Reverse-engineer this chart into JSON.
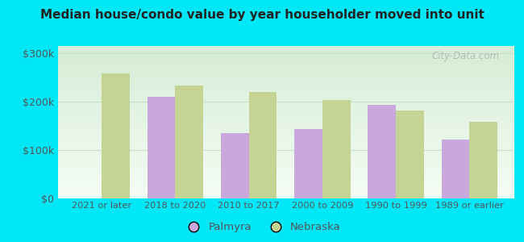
{
  "title": "Median house/condo value by year householder moved into unit",
  "categories": [
    "2021 or later",
    "2018 to 2020",
    "2010 to 2017",
    "2000 to 2009",
    "1990 to 1999",
    "1989 or earlier"
  ],
  "palmyra_values": [
    null,
    210000,
    135000,
    143000,
    193000,
    122000
  ],
  "nebraska_values": [
    258000,
    233000,
    220000,
    203000,
    182000,
    158000
  ],
  "palmyra_color": "#c9a8dc",
  "nebraska_color": "#c5d494",
  "background_outer": "#00e8f8",
  "background_inner_top": "#d6edd6",
  "background_inner_bottom": "#f5fdf5",
  "ylabel_color": "#555555",
  "grid_color": "#c8e0c8",
  "title_color": "#222222",
  "yticks": [
    0,
    100000,
    200000,
    300000
  ],
  "ylim": [
    0,
    315000
  ],
  "bar_width": 0.38,
  "watermark": "City-Data.com",
  "figsize": [
    6.5,
    3.0
  ],
  "dpi": 100
}
